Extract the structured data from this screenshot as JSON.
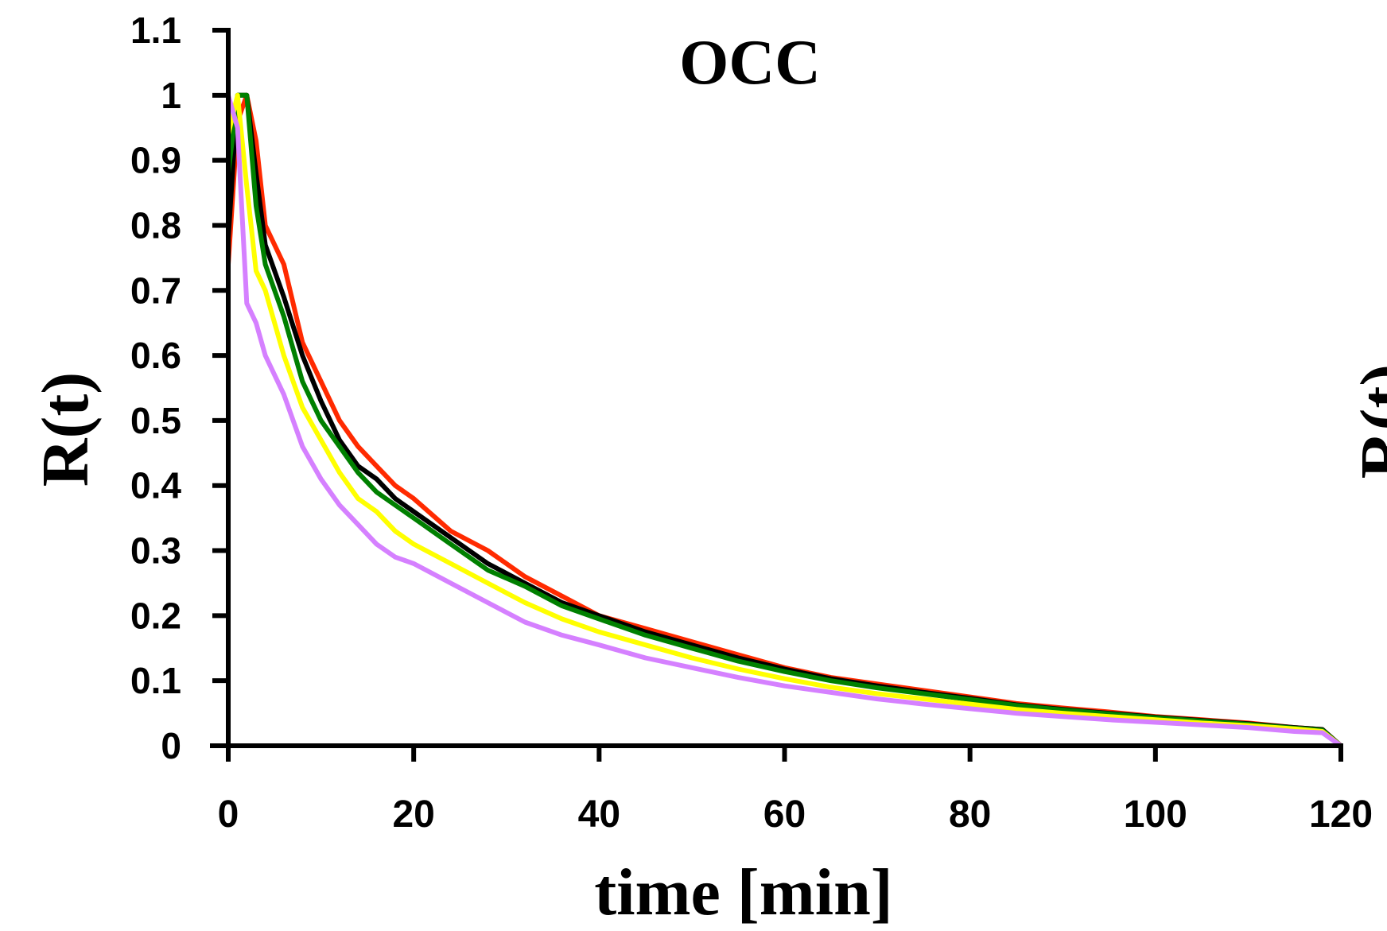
{
  "chart_data": [
    {
      "type": "line",
      "title": "OCC",
      "xlabel": "time [min]",
      "ylabel": "R(t)",
      "xlim": [
        0,
        120
      ],
      "ylim": [
        0,
        1.1
      ],
      "x_ticks": [
        "0",
        "20",
        "40",
        "60",
        "80",
        "100",
        "120"
      ],
      "y_ticks": [
        "0",
        "0.1",
        "0.2",
        "0.3",
        "0.4",
        "0.5",
        "0.6",
        "0.7",
        "0.8",
        "0.9",
        "1",
        "1.1"
      ],
      "grid": false,
      "legend": "none",
      "series": [
        {
          "color": "#ff2a00",
          "x": [
            0,
            1,
            2,
            3,
            4,
            6,
            8,
            10,
            12,
            14,
            16,
            18,
            20,
            24,
            28,
            32,
            36,
            40,
            45,
            50,
            55,
            60,
            65,
            70,
            75,
            80,
            85,
            90,
            95,
            100,
            105,
            110,
            115,
            118,
            120
          ],
          "y": [
            0.74,
            0.96,
            1.0,
            0.93,
            0.8,
            0.74,
            0.62,
            0.56,
            0.5,
            0.46,
            0.43,
            0.4,
            0.38,
            0.33,
            0.3,
            0.26,
            0.23,
            0.2,
            0.18,
            0.16,
            0.14,
            0.12,
            0.105,
            0.095,
            0.085,
            0.075,
            0.065,
            0.058,
            0.052,
            0.045,
            0.04,
            0.035,
            0.028,
            0.025,
            0.0
          ]
        },
        {
          "color": "#000000",
          "x": [
            0,
            1,
            2,
            3,
            4,
            6,
            8,
            10,
            12,
            14,
            16,
            18,
            20,
            24,
            28,
            32,
            36,
            40,
            45,
            50,
            55,
            60,
            65,
            70,
            75,
            80,
            85,
            90,
            95,
            100,
            105,
            110,
            115,
            118,
            120
          ],
          "y": [
            0.78,
            1.0,
            1.0,
            0.88,
            0.77,
            0.69,
            0.6,
            0.53,
            0.47,
            0.43,
            0.41,
            0.38,
            0.36,
            0.32,
            0.28,
            0.25,
            0.22,
            0.2,
            0.175,
            0.155,
            0.135,
            0.118,
            0.103,
            0.092,
            0.082,
            0.073,
            0.063,
            0.056,
            0.05,
            0.044,
            0.039,
            0.034,
            0.028,
            0.025,
            0.0
          ]
        },
        {
          "color": "#008000",
          "x": [
            0,
            1,
            2,
            3,
            4,
            6,
            8,
            10,
            12,
            14,
            16,
            18,
            20,
            24,
            28,
            32,
            36,
            40,
            45,
            50,
            55,
            60,
            65,
            70,
            75,
            80,
            85,
            90,
            95,
            100,
            105,
            110,
            115,
            118,
            120
          ],
          "y": [
            0.88,
            1.0,
            1.0,
            0.83,
            0.74,
            0.66,
            0.56,
            0.5,
            0.46,
            0.42,
            0.39,
            0.37,
            0.35,
            0.31,
            0.27,
            0.245,
            0.215,
            0.195,
            0.17,
            0.15,
            0.13,
            0.114,
            0.1,
            0.089,
            0.08,
            0.071,
            0.062,
            0.055,
            0.049,
            0.043,
            0.038,
            0.033,
            0.027,
            0.024,
            0.0
          ]
        },
        {
          "color": "#ffff00",
          "x": [
            0,
            1,
            2,
            3,
            4,
            6,
            8,
            10,
            12,
            14,
            16,
            18,
            20,
            24,
            28,
            32,
            36,
            40,
            45,
            50,
            55,
            60,
            65,
            70,
            75,
            80,
            85,
            90,
            95,
            100,
            105,
            110,
            115,
            118,
            120
          ],
          "y": [
            0.94,
            1.0,
            0.86,
            0.73,
            0.7,
            0.6,
            0.52,
            0.47,
            0.42,
            0.38,
            0.36,
            0.33,
            0.31,
            0.28,
            0.25,
            0.22,
            0.195,
            0.175,
            0.155,
            0.135,
            0.118,
            0.103,
            0.09,
            0.08,
            0.072,
            0.064,
            0.056,
            0.05,
            0.045,
            0.04,
            0.035,
            0.031,
            0.026,
            0.022,
            0.0
          ]
        },
        {
          "color": "#d580ff",
          "x": [
            0,
            1,
            2,
            3,
            4,
            6,
            8,
            10,
            12,
            14,
            16,
            18,
            20,
            24,
            28,
            32,
            36,
            40,
            45,
            50,
            55,
            60,
            65,
            70,
            75,
            80,
            85,
            90,
            95,
            100,
            105,
            110,
            115,
            118,
            120
          ],
          "y": [
            1.0,
            0.95,
            0.68,
            0.65,
            0.6,
            0.54,
            0.46,
            0.41,
            0.37,
            0.34,
            0.31,
            0.29,
            0.28,
            0.25,
            0.22,
            0.19,
            0.17,
            0.155,
            0.135,
            0.12,
            0.105,
            0.092,
            0.082,
            0.072,
            0.064,
            0.057,
            0.05,
            0.045,
            0.04,
            0.036,
            0.032,
            0.028,
            0.022,
            0.02,
            0.0
          ]
        }
      ]
    },
    {
      "type": "line",
      "ylabel": "R(t)",
      "partial": true
    }
  ]
}
